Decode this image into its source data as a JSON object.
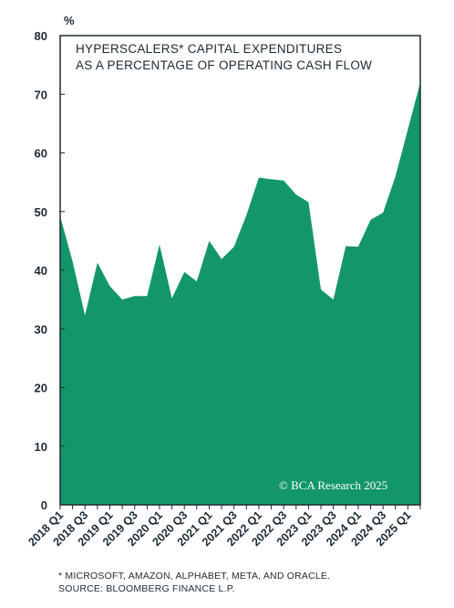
{
  "chart_data": {
    "type": "area",
    "title_lines": [
      "HYPERSCALERS* CAPITAL EXPENDITURES",
      "AS A PERCENTAGE OF OPERATING CASH FLOW"
    ],
    "ylabel": "%",
    "ylim": [
      0,
      80
    ],
    "yticks": [
      0,
      10,
      20,
      30,
      40,
      50,
      60,
      70,
      80
    ],
    "xtick_labels": [
      "2018 Q1",
      "2018 Q3",
      "2019 Q1",
      "2019 Q3",
      "2020 Q1",
      "2020 Q3",
      "2021 Q1",
      "2021 Q3",
      "2022 Q1",
      "2022 Q3",
      "2023 Q1",
      "2023 Q3",
      "2024 Q1",
      "2024 Q3",
      "2025 Q1"
    ],
    "categories": [
      "2018 Q1",
      "2018 Q2",
      "2018 Q3",
      "2018 Q4",
      "2019 Q1",
      "2019 Q2",
      "2019 Q3",
      "2019 Q4",
      "2020 Q1",
      "2020 Q2",
      "2020 Q3",
      "2020 Q4",
      "2021 Q1",
      "2021 Q2",
      "2021 Q3",
      "2021 Q4",
      "2022 Q1",
      "2022 Q2",
      "2022 Q3",
      "2022 Q4",
      "2023 Q1",
      "2023 Q2",
      "2023 Q3",
      "2023 Q4",
      "2024 Q1",
      "2024 Q2",
      "2024 Q3",
      "2024 Q4",
      "2025 Q1",
      "2025 Q2"
    ],
    "values": [
      49.2,
      41.5,
      32.3,
      41.3,
      37.3,
      35.0,
      35.6,
      35.6,
      44.4,
      35.2,
      39.7,
      38.1,
      45.0,
      41.9,
      44.0,
      49.4,
      55.8,
      55.5,
      55.3,
      52.9,
      51.6,
      36.7,
      35.0,
      44.1,
      44.0,
      48.6,
      49.8,
      56.0,
      64.0,
      72.0
    ],
    "grid": false,
    "fill_color": "#13966c",
    "axis_color": "#1d2a33"
  },
  "footnotes": [
    "* MICROSOFT, AMAZON, ALPHABET,  META, AND ORACLE.",
    "SOURCE: BLOOMBERG FINANCE L.P."
  ],
  "brand": "© BCA Research 2025"
}
